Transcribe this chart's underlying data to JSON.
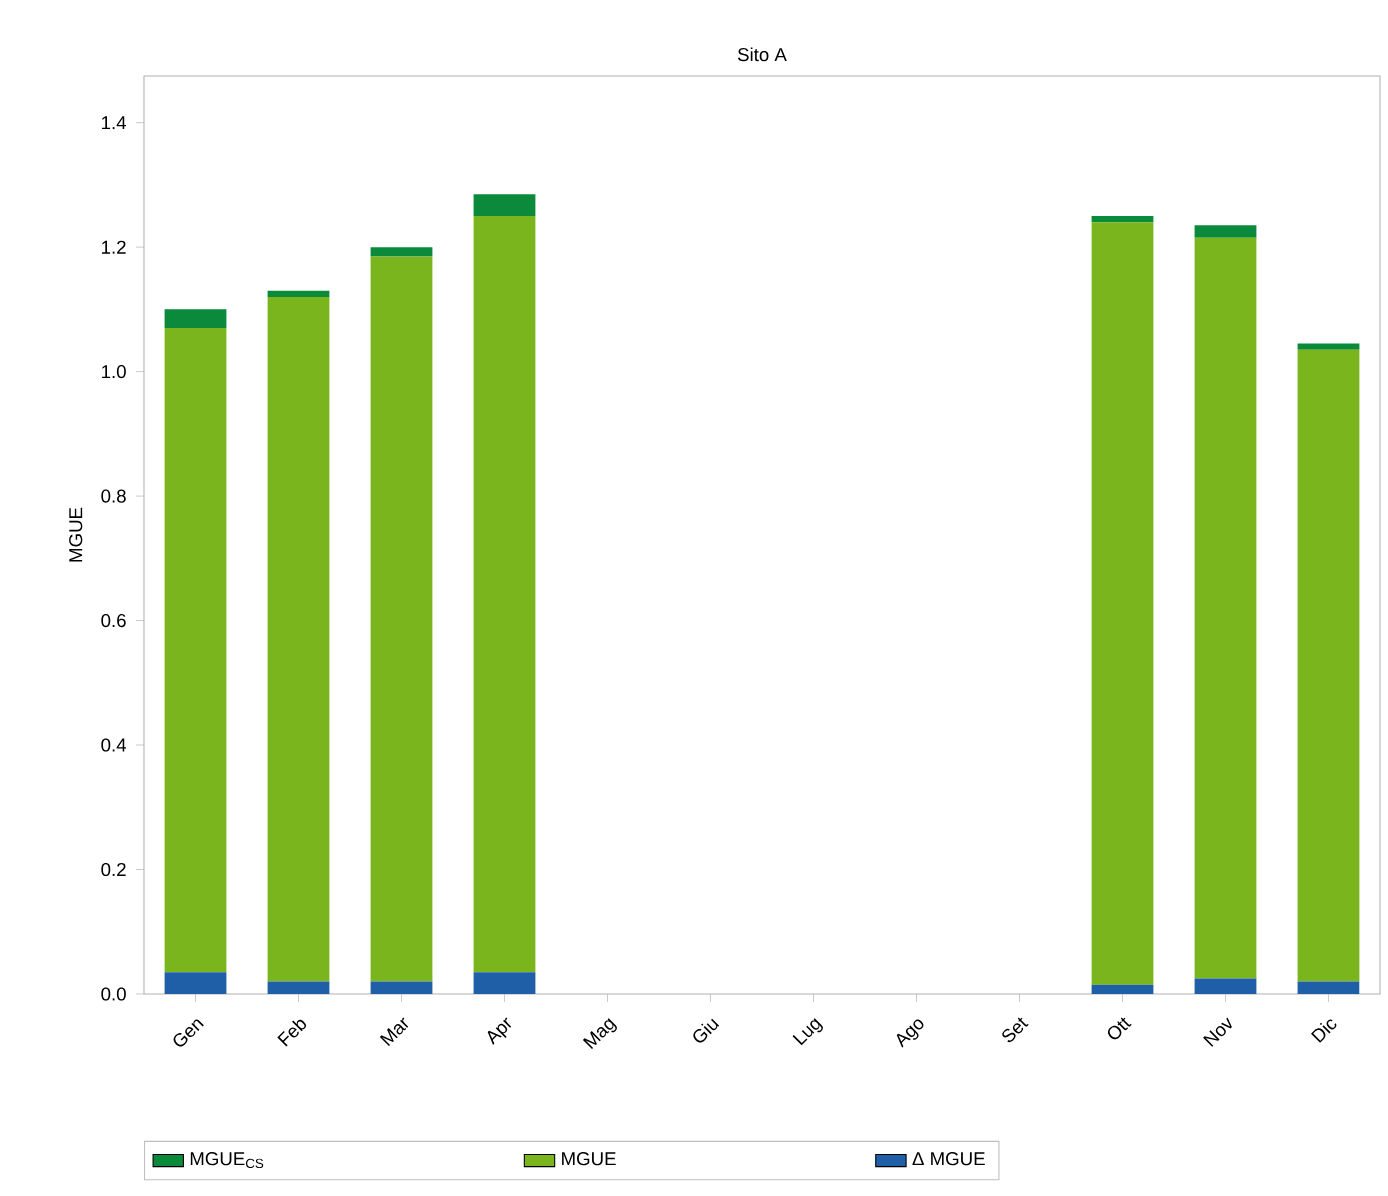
{
  "chart_data": {
    "type": "bar",
    "title": "Sito A",
    "ylabel": "MGUE",
    "stacked": true,
    "legend": "bottom",
    "categories": [
      "Gen",
      "Feb",
      "Mar",
      "Apr",
      "Mag",
      "Giu",
      "Lug",
      "Ago",
      "Set",
      "Ott",
      "Nov",
      "Dic"
    ],
    "series": [
      {
        "name": "Δ MGUE",
        "color": "#1f5fa8",
        "values": [
          0.035,
          0.02,
          0.02,
          0.035,
          0,
          0,
          0,
          0,
          0,
          0.015,
          0.025,
          0.02
        ]
      },
      {
        "name": "MGUE",
        "color": "#7ab51d",
        "values": [
          1.035,
          1.1,
          1.165,
          1.215,
          0,
          0,
          0,
          0,
          0,
          1.225,
          1.19,
          1.015
        ]
      },
      {
        "name": "MGUE$_{CS}$",
        "color": "#0a8a3a",
        "values": [
          0.03,
          0.01,
          0.015,
          0.035,
          0,
          0,
          0,
          0,
          0,
          0.01,
          0.02,
          0.01
        ]
      }
    ],
    "ylim": [
      0,
      1.475
    ],
    "yticks": [
      {
        "value": 0,
        "label": "0.0"
      },
      {
        "value": 0.2,
        "label": "0.2"
      },
      {
        "value": 0.4,
        "label": "0.4"
      },
      {
        "value": 0.6,
        "label": "0.6"
      },
      {
        "value": 0.8,
        "label": "0.8"
      },
      {
        "value": 1.0,
        "label": "1.0"
      },
      {
        "value": 1.2,
        "label": "1.2"
      },
      {
        "value": 1.4,
        "label": "1.4"
      }
    ]
  }
}
